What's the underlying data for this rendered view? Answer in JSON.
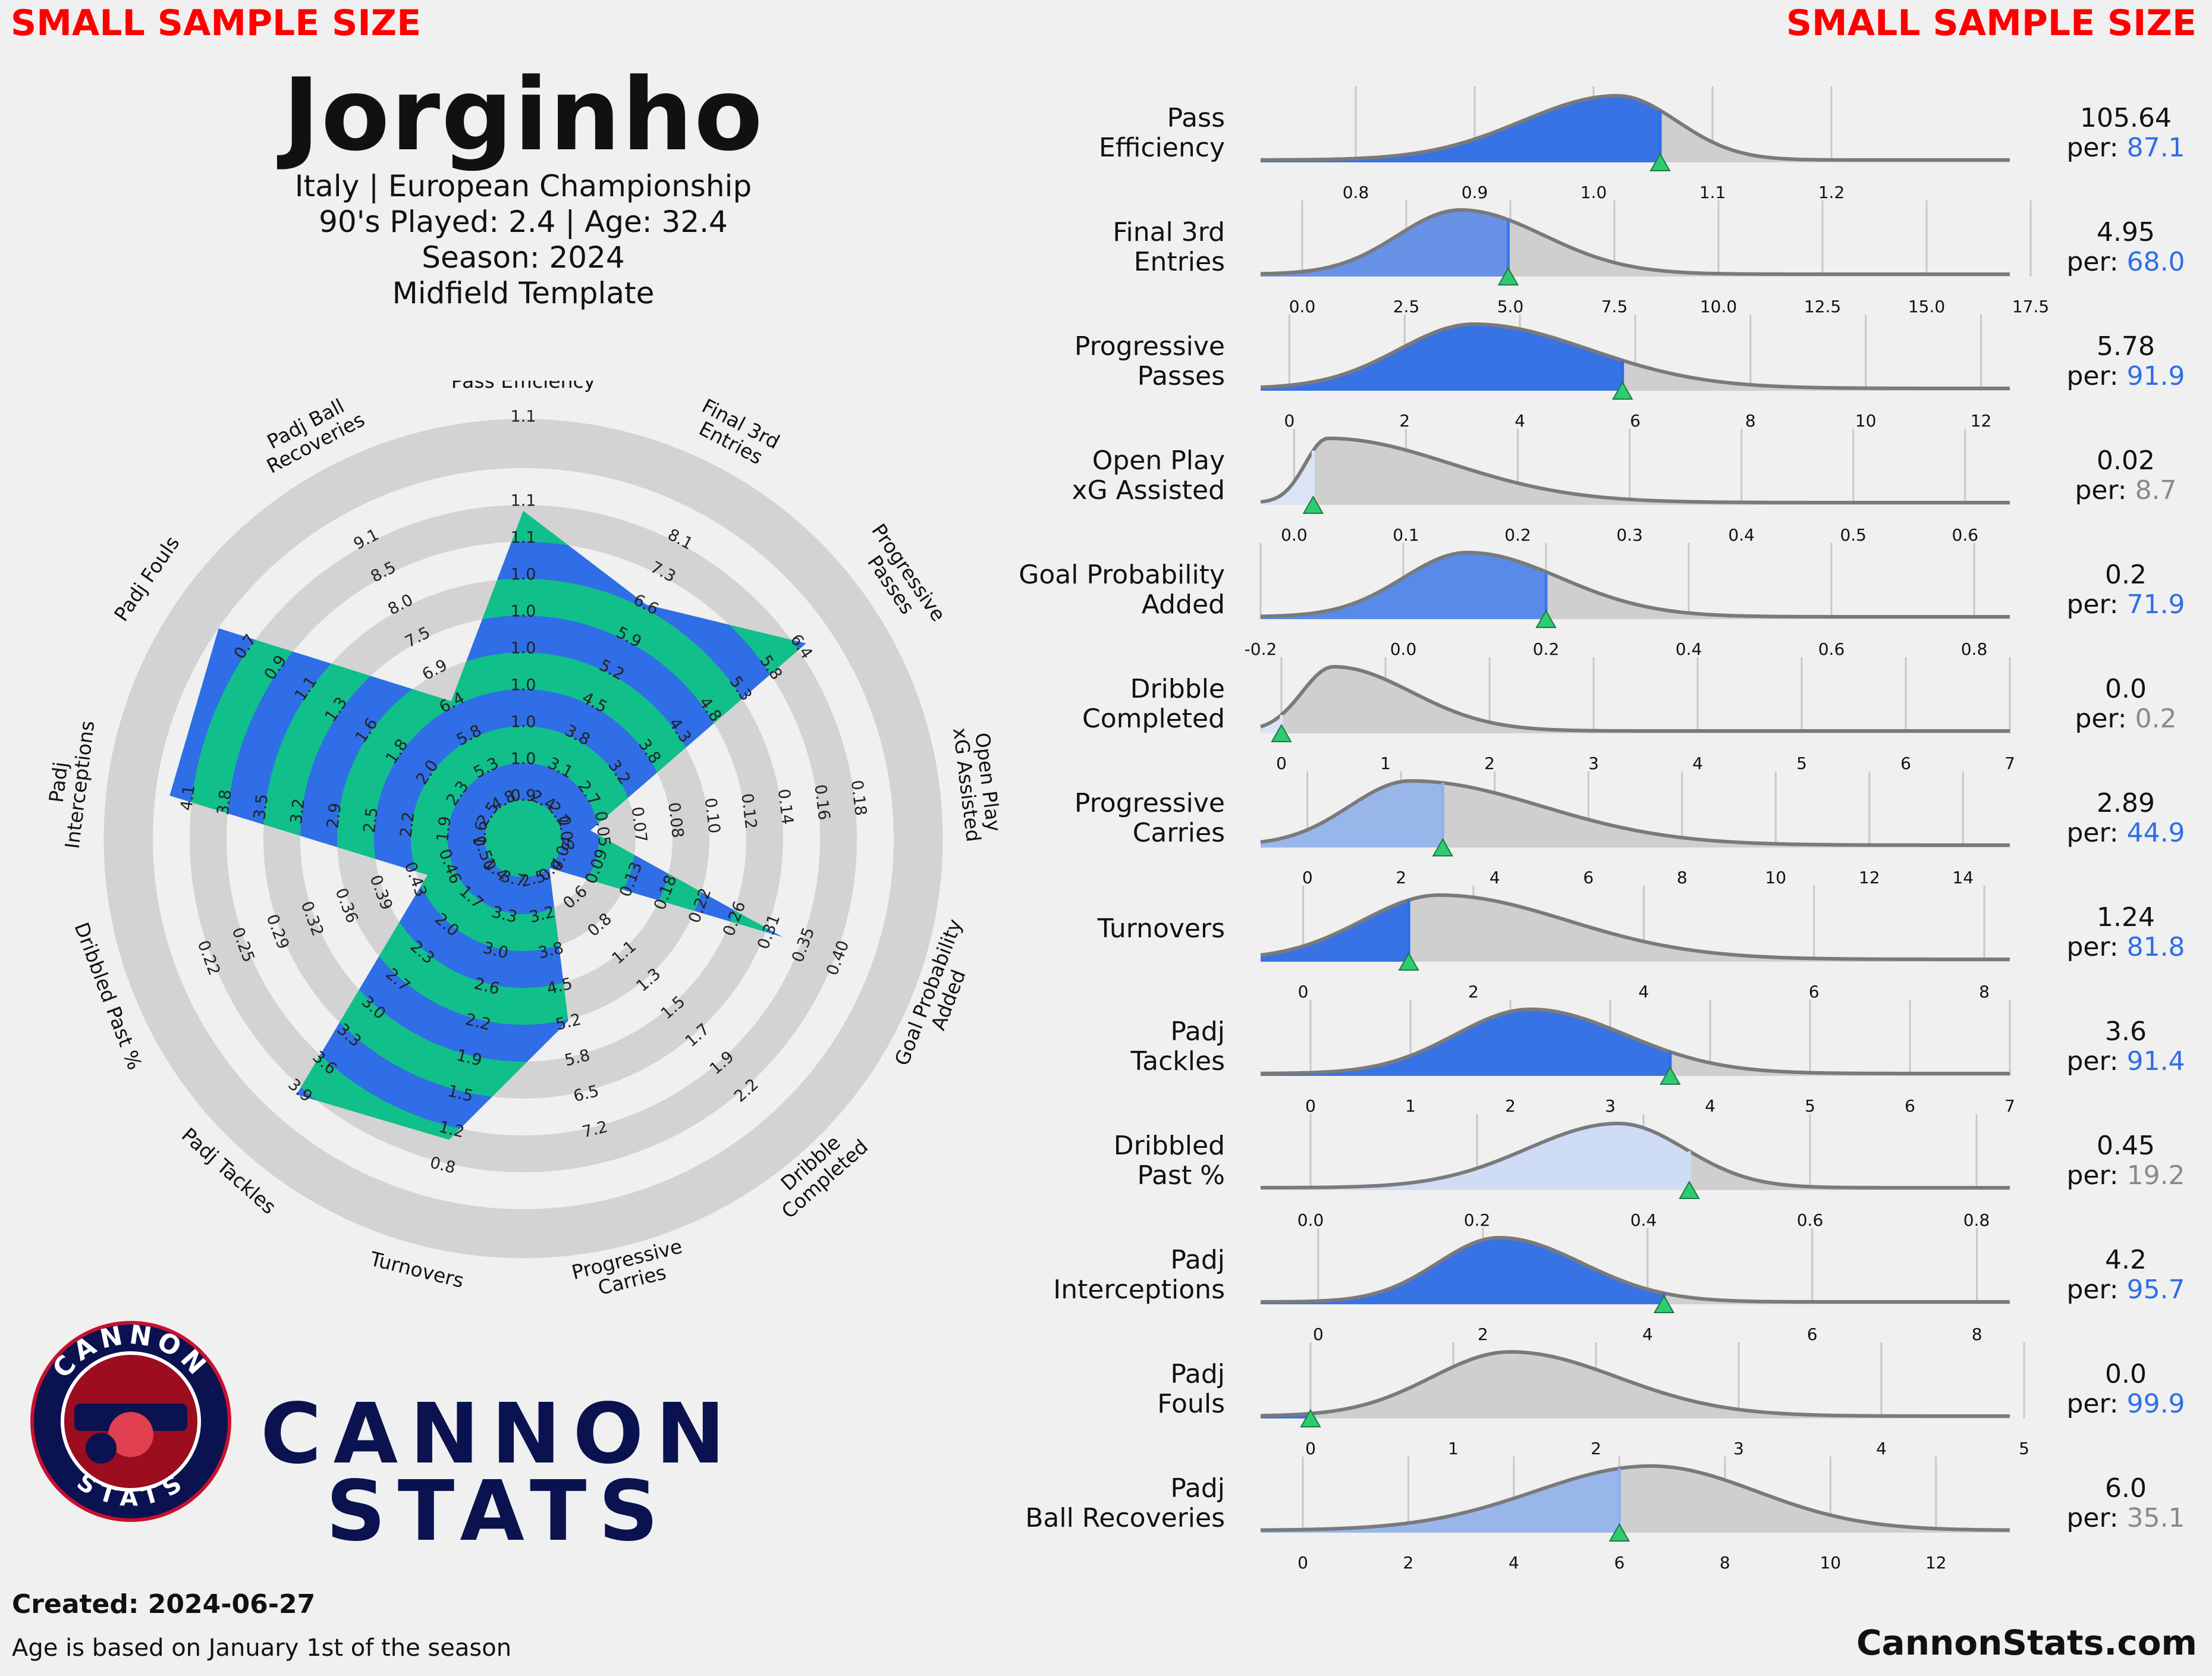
{
  "header": {
    "warning_left": "SMALL SAMPLE SIZE",
    "warning_right": "SMALL SAMPLE SIZE",
    "title": "Jorginho",
    "line1": "Italy | European Championship",
    "line2": "90's Played: 2.4 | Age: 32.4",
    "line3": "Season: 2024",
    "line4": "Midfield Template"
  },
  "colors": {
    "blue": "#2f6ee6",
    "green": "#10bf8a",
    "ring": "#d3d3d3",
    "curve": "#7a7a7a",
    "fill": "#cfcfcf",
    "marker": "#2ecc71",
    "warn": "#ff0000",
    "brand": "#0b1250"
  },
  "chart_data": [
    {
      "type": "radar",
      "axes": [
        {
          "label": "Pass Efficiency",
          "ticks": [
            "0.9",
            "1.0",
            "1.0",
            "1.0",
            "1.0",
            "1.0",
            "1.0",
            "1.1",
            "1.1"
          ],
          "value": 1.06,
          "percentile": 87.1
        },
        {
          "label": "Final 3rd Entries",
          "ticks": [
            "2.4",
            "3.1",
            "3.8",
            "4.5",
            "5.2",
            "5.9",
            "6.6",
            "7.3",
            "8.1"
          ],
          "value": 4.95,
          "percentile": 68.0
        },
        {
          "label": "Progressive Passes",
          "ticks": [
            "2.2",
            "2.7",
            "3.2",
            "3.8",
            "4.3",
            "4.8",
            "5.3",
            "5.8",
            "6.4"
          ],
          "value": 5.78,
          "percentile": 91.9
        },
        {
          "label": "Open Play xG Assisted",
          "ticks": [
            "0.03",
            "0.05",
            "0.07",
            "0.08",
            "0.10",
            "0.12",
            "0.14",
            "0.16",
            "0.18"
          ],
          "value": 0.02,
          "percentile": 8.7
        },
        {
          "label": "Goal Probability Added",
          "ticks": [
            "0.04",
            "0.09",
            "0.13",
            "0.18",
            "0.22",
            "0.26",
            "0.31",
            "0.35",
            "0.40"
          ],
          "value": 0.2,
          "percentile": 71.9
        },
        {
          "label": "Dribble Completed",
          "ticks": [
            "0.4",
            "0.6",
            "0.8",
            "1.1",
            "1.3",
            "1.5",
            "1.7",
            "1.9",
            "2.2"
          ],
          "value": 0.0,
          "percentile": 0.2
        },
        {
          "label": "Progressive Carries",
          "ticks": [
            "2.5",
            "3.2",
            "3.8",
            "4.5",
            "5.2",
            "5.8",
            "6.5",
            "7.2"
          ],
          "value": 2.89,
          "percentile": 44.9
        },
        {
          "label": "Turnovers",
          "ticks": [
            "3.7",
            "3.3",
            "3.0",
            "2.6",
            "2.2",
            "1.9",
            "1.5",
            "1.2",
            "0.8"
          ],
          "value": 1.24,
          "percentile": 81.8
        },
        {
          "label": "Padj Tackles",
          "ticks": [
            "1.4",
            "1.7",
            "2.0",
            "2.3",
            "2.7",
            "3.0",
            "3.3",
            "3.6",
            "3.9"
          ],
          "value": 3.6,
          "percentile": 91.4
        },
        {
          "label": "Dribbled Past %",
          "ticks": [
            "0.50",
            "0.46",
            "0.43",
            "0.39",
            "0.36",
            "0.32",
            "0.29",
            "0.25",
            "0.22"
          ],
          "value": 0.45,
          "percentile": 19.2
        },
        {
          "label": "Padj Interceptions",
          "ticks": [
            "1.6",
            "1.9",
            "2.2",
            "2.5",
            "2.9",
            "3.2",
            "3.5",
            "3.8",
            "4.1"
          ],
          "value": 4.2,
          "percentile": 95.7
        },
        {
          "label": "Padj Fouls",
          "ticks": [
            "2.5",
            "2.3",
            "2.0",
            "1.8",
            "1.6",
            "1.3",
            "1.1",
            "0.9",
            "0.7"
          ],
          "value": 0.0,
          "percentile": 99.9
        },
        {
          "label": "Padj Ball Recoveries",
          "ticks": [
            "4.8",
            "5.3",
            "5.8",
            "6.4",
            "6.9",
            "7.5",
            "8.0",
            "8.5",
            "9.1"
          ],
          "value": 6.0,
          "percentile": 35.1
        }
      ],
      "extra_tick_pass_efficiency": "1.1"
    },
    {
      "type": "distribution",
      "metrics": [
        {
          "label": [
            "Pass",
            "Efficiency"
          ],
          "value": "105.64",
          "pct": "87.1",
          "pctcolor": "#2f6ee6",
          "fill": "#2f6ee6",
          "op": 0.95,
          "xmin": 0.72,
          "xmax": 1.35,
          "ticks": [
            0.8,
            0.9,
            1.0,
            1.1,
            1.2
          ],
          "ticklabels": [
            "0.8",
            "0.9",
            "1.0",
            "1.1",
            "1.2"
          ],
          "peak": 1.02,
          "wl": 0.08,
          "wr": 0.05,
          "mark": 1.056
        },
        {
          "label": [
            "Final 3rd",
            "Entries"
          ],
          "value": "4.95",
          "pct": "68.0",
          "pctcolor": "#2f6ee6",
          "fill": "#3a78ee",
          "op": 0.7,
          "xmin": -1.0,
          "xmax": 17.0,
          "ticks": [
            0,
            2.5,
            5,
            7.5,
            10,
            12.5,
            15,
            17.5
          ],
          "ticklabels": [
            "0.0",
            "2.5",
            "5.0",
            "7.5",
            "10.0",
            "12.5",
            "15.0",
            "17.5"
          ],
          "peak": 3.8,
          "wl": 1.5,
          "wr": 2.0,
          "mark": 4.95
        },
        {
          "label": [
            "Progressive",
            "Passes"
          ],
          "value": "5.78",
          "pct": "91.9",
          "pctcolor": "#2f6ee6",
          "fill": "#2f6ee6",
          "op": 0.95,
          "xmin": -0.5,
          "xmax": 12.5,
          "ticks": [
            0,
            2,
            4,
            6,
            8,
            10,
            12
          ],
          "ticklabels": [
            "0",
            "2",
            "4",
            "6",
            "8",
            "10",
            "12"
          ],
          "peak": 3.2,
          "wl": 1.3,
          "wr": 2.0,
          "mark": 5.78
        },
        {
          "label": [
            "Open Play",
            "xG Assisted"
          ],
          "value": "0.02",
          "pct": "8.7",
          "pctcolor": "#8a8a8a",
          "fill": "#dce6f8",
          "op": 0.9,
          "xmin": -0.03,
          "xmax": 0.64,
          "ticks": [
            0,
            0.1,
            0.2,
            0.3,
            0.4,
            0.5,
            0.6
          ],
          "ticklabels": [
            "0.0",
            "0.1",
            "0.2",
            "0.3",
            "0.4",
            "0.5",
            "0.6"
          ],
          "peak": 0.03,
          "wl": 0.02,
          "wr": 0.11,
          "mark": 0.017
        },
        {
          "label": [
            "Goal Probability",
            "Added"
          ],
          "value": "0.2",
          "pct": "71.9",
          "pctcolor": "#2f6ee6",
          "fill": "#3a78ee",
          "op": 0.8,
          "xmin": -0.2,
          "xmax": 0.85,
          "ticks": [
            -0.2,
            0,
            0.2,
            0.4,
            0.6,
            0.8
          ],
          "ticklabels": [
            "-0.2",
            "0.0",
            "0.2",
            "0.4",
            "0.6",
            "0.8"
          ],
          "peak": 0.09,
          "wl": 0.09,
          "wr": 0.13,
          "mark": 0.2
        },
        {
          "label": [
            "Dribble",
            "Completed"
          ],
          "value": "0.0",
          "pct": "0.2",
          "pctcolor": "#8a8a8a",
          "fill": "#dce6f8",
          "op": 0.9,
          "xmin": -0.2,
          "xmax": 7.0,
          "ticks": [
            0,
            1,
            2,
            3,
            4,
            5,
            6,
            7
          ],
          "ticklabels": [
            "0",
            "1",
            "2",
            "3",
            "4",
            "5",
            "6",
            "7"
          ],
          "peak": 0.5,
          "wl": 0.3,
          "wr": 0.75,
          "mark": 0.0
        },
        {
          "label": [
            "Progressive",
            "Carries"
          ],
          "value": "2.89",
          "pct": "44.9",
          "pctcolor": "#2f6ee6",
          "fill": "#8fb1f0",
          "op": 0.85,
          "xmin": -1.0,
          "xmax": 15.0,
          "ticks": [
            0,
            2,
            4,
            6,
            8,
            10,
            12,
            14
          ],
          "ticklabels": [
            "0",
            "2",
            "4",
            "6",
            "8",
            "10",
            "12",
            "14"
          ],
          "peak": 2.2,
          "wl": 1.3,
          "wr": 2.8,
          "mark": 2.89
        },
        {
          "label": [
            "Turnovers"
          ],
          "value": "1.24",
          "pct": "81.8",
          "pctcolor": "#2f6ee6",
          "fill": "#2f6ee6",
          "op": 0.95,
          "xmin": -0.5,
          "xmax": 8.3,
          "ticks": [
            0,
            2,
            4,
            6,
            8
          ],
          "ticklabels": [
            "0",
            "2",
            "4",
            "6",
            "8"
          ],
          "peak": 1.6,
          "wl": 0.9,
          "wr": 1.5,
          "mark": 1.24
        },
        {
          "label": [
            "Padj",
            "Tackles"
          ],
          "value": "3.6",
          "pct": "91.4",
          "pctcolor": "#2f6ee6",
          "fill": "#2f6ee6",
          "op": 0.95,
          "xmin": -0.5,
          "xmax": 7.0,
          "ticks": [
            0,
            1,
            2,
            3,
            4,
            5,
            6,
            7
          ],
          "ticklabels": [
            "0",
            "1",
            "2",
            "3",
            "4",
            "5",
            "6",
            "7"
          ],
          "peak": 2.2,
          "wl": 0.75,
          "wr": 0.95,
          "mark": 3.6
        },
        {
          "label": [
            "Dribbled",
            "Past %"
          ],
          "value": "0.45",
          "pct": "19.2",
          "pctcolor": "#8a8a8a",
          "fill": "#cfdcf7",
          "op": 0.95,
          "xmin": -0.06,
          "xmax": 0.84,
          "ticks": [
            0,
            0.2,
            0.4,
            0.6,
            0.8
          ],
          "ticklabels": [
            "0.0",
            "0.2",
            "0.4",
            "0.6",
            "0.8"
          ],
          "peak": 0.37,
          "wl": 0.11,
          "wr": 0.08,
          "mark": 0.455
        },
        {
          "label": [
            "Padj",
            "Interceptions"
          ],
          "value": "4.2",
          "pct": "95.7",
          "pctcolor": "#2f6ee6",
          "fill": "#2f6ee6",
          "op": 0.95,
          "xmin": -0.7,
          "xmax": 8.4,
          "ticks": [
            0,
            2,
            4,
            6,
            8
          ],
          "ticklabels": [
            "0",
            "2",
            "4",
            "6",
            "8"
          ],
          "peak": 2.2,
          "wl": 0.75,
          "wr": 1.0,
          "mark": 4.2
        },
        {
          "label": [
            "Padj",
            "Fouls"
          ],
          "value": "0.0",
          "pct": "99.9",
          "pctcolor": "#2f6ee6",
          "fill": "#2f6ee6",
          "op": 0.95,
          "xmin": -0.35,
          "xmax": 4.9,
          "ticks": [
            0,
            1,
            2,
            3,
            4,
            5
          ],
          "ticklabels": [
            "0",
            "1",
            "2",
            "3",
            "4",
            "5"
          ],
          "peak": 1.4,
          "wl": 0.55,
          "wr": 0.75,
          "mark": 0.0
        },
        {
          "label": [
            "Padj",
            "Ball Recoveries"
          ],
          "value": "6.0",
          "pct": "35.1",
          "pctcolor": "#8a8a8a",
          "fill": "#8fb1f0",
          "op": 0.85,
          "xmin": -0.8,
          "xmax": 13.4,
          "ticks": [
            0,
            2,
            4,
            6,
            8,
            10,
            12
          ],
          "ticklabels": [
            "0",
            "2",
            "4",
            "6",
            "8",
            "10",
            "12"
          ],
          "peak": 6.6,
          "wl": 2.2,
          "wr": 2.0,
          "mark": 6.0
        }
      ],
      "per_prefix": "per: "
    }
  ],
  "logo": {
    "ring_top": "CANNON",
    "ring_bottom": "STATS",
    "brand_line1": "CANNON",
    "brand_line2": "STATS"
  },
  "footer": {
    "created": "Created: 2024-06-27",
    "note": "Age is based on January 1st of the season",
    "site": "CannonStats.com"
  }
}
